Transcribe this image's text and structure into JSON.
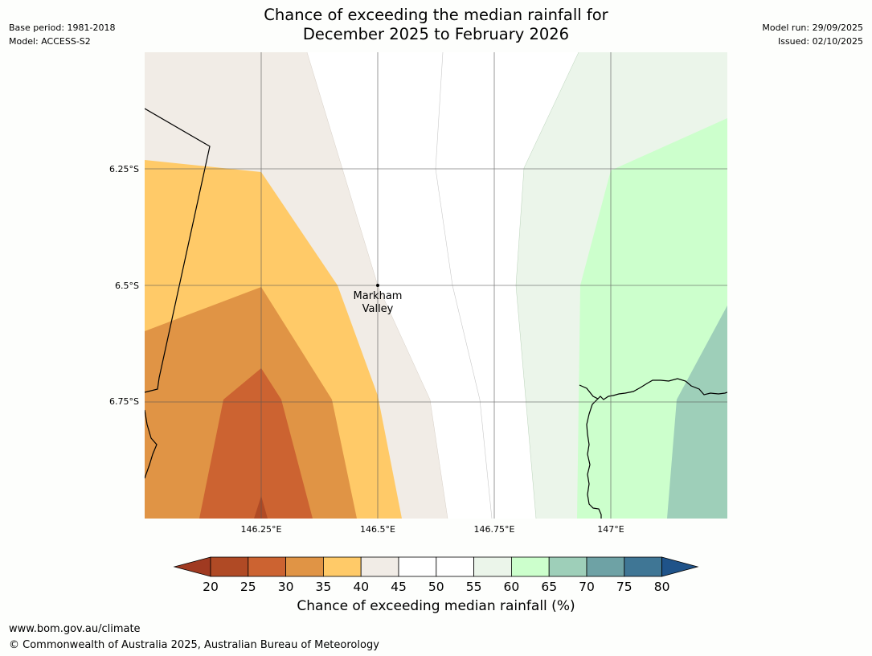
{
  "header": {
    "base_period": "Base period: 1981-2018",
    "model": "Model: ACCESS-S2",
    "title_line1": "Chance of exceeding the median rainfall for",
    "title_line2": "December 2025 to February 2026",
    "model_run": "Model run: 29/09/2025",
    "issued": "Issued: 02/10/2025"
  },
  "map": {
    "lat_labels": [
      "6.25°S",
      "6.5°S",
      "6.75°S"
    ],
    "lon_labels": [
      "146.25°E",
      "146.5°E",
      "146.75°E",
      "147°E"
    ],
    "place": {
      "name_line1": "Markham",
      "name_line2": "Valley",
      "lon": 146.5,
      "lat": -6.5
    }
  },
  "colorbar": {
    "ticks": [
      "20",
      "25",
      "30",
      "35",
      "40",
      "45",
      "50",
      "55",
      "60",
      "65",
      "70",
      "75",
      "80"
    ],
    "colors": [
      "#a03a21",
      "#b04a25",
      "#cc6331",
      "#e09445",
      "#ffca68",
      "#f1ece6",
      "#ffffff",
      "#ffffff",
      "#ebf5ea",
      "#ccffcc",
      "#9ecfb9",
      "#6ea2a5",
      "#3f7695",
      "#1f5389"
    ],
    "label": "Chance of exceeding median rainfall (%)"
  },
  "footer": {
    "url": "www.bom.gov.au/climate",
    "copyright": "© Commonwealth of Australia 2025, Australian Bureau of Meteorology"
  }
}
